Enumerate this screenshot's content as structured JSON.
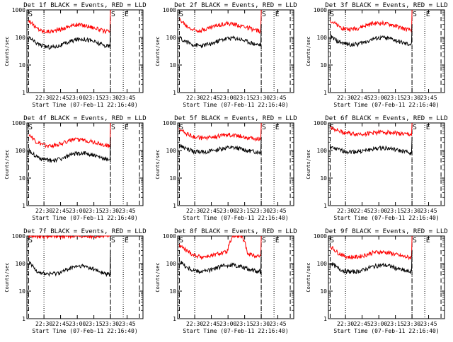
{
  "xaxis_label": "Start Time (07-Feb-11 22:16:40)",
  "yaxis_label": "Counts/sec",
  "chart_data": [
    {
      "type": "line",
      "title": "Det 1f BLACK = Events, RED = LLD",
      "x_tick_labels": [
        "22:30",
        "22:45",
        "23:00",
        "23:15",
        "23:30",
        "23:45"
      ],
      "y_tick_labels": [
        "1",
        "10",
        "100",
        "1000"
      ],
      "ylim": [
        1,
        1000
      ],
      "log_y": true,
      "markers": [
        "S",
        "E"
      ],
      "series": [
        {
          "name": "RED",
          "color": "#ff0000",
          "level": 150,
          "trend": [
            420,
            230,
            170,
            165,
            180,
            210,
            260,
            290,
            280,
            250,
            210,
            170,
            160,
            1000
          ]
        },
        {
          "name": "BLACK",
          "color": "#000000",
          "level": 50,
          "trend": [
            100,
            65,
            50,
            45,
            48,
            55,
            70,
            85,
            90,
            80,
            65,
            52,
            48,
            300
          ]
        }
      ]
    },
    {
      "type": "line",
      "title": "Det 2f BLACK = Events, RED = LLD",
      "x_tick_labels": [
        "22:30",
        "22:45",
        "23:00",
        "23:15",
        "23:30",
        "23:45"
      ],
      "y_tick_labels": [
        "1",
        "10",
        "100",
        "1000"
      ],
      "ylim": [
        1,
        1000
      ],
      "log_y": true,
      "markers": [
        "S",
        "E"
      ],
      "series": [
        {
          "name": "RED",
          "color": "#ff0000",
          "trend": [
            450,
            260,
            190,
            185,
            210,
            250,
            300,
            320,
            300,
            270,
            230,
            185,
            170,
            1000
          ]
        },
        {
          "name": "BLACK",
          "color": "#000000",
          "trend": [
            100,
            70,
            55,
            50,
            55,
            62,
            80,
            92,
            95,
            85,
            70,
            58,
            52,
            300
          ]
        }
      ]
    },
    {
      "type": "line",
      "title": "Det 3f BLACK = Events, RED = LLD",
      "x_tick_labels": [
        "22:30",
        "22:45",
        "23:00",
        "23:15",
        "23:30",
        "23:45"
      ],
      "y_tick_labels": [
        "1",
        "10",
        "100",
        "1000"
      ],
      "ylim": [
        1,
        1000
      ],
      "log_y": true,
      "markers": [
        "S",
        "E"
      ],
      "series": [
        {
          "name": "RED",
          "color": "#ff0000",
          "trend": [
            430,
            270,
            210,
            200,
            215,
            260,
            310,
            330,
            320,
            290,
            240,
            200,
            180,
            1000
          ]
        },
        {
          "name": "BLACK",
          "color": "#000000",
          "trend": [
            110,
            75,
            60,
            56,
            58,
            68,
            85,
            95,
            98,
            88,
            72,
            60,
            55,
            300
          ]
        }
      ]
    },
    {
      "type": "line",
      "title": "Det 4f BLACK = Events, RED = LLD",
      "x_tick_labels": [
        "22:30",
        "22:45",
        "23:00",
        "23:15",
        "23:30",
        "23:45"
      ],
      "y_tick_labels": [
        "1",
        "10",
        "100",
        "1000"
      ],
      "ylim": [
        1,
        1000
      ],
      "log_y": true,
      "markers": [
        "S",
        "E"
      ],
      "series": [
        {
          "name": "RED",
          "color": "#ff0000",
          "trend": [
            380,
            210,
            160,
            150,
            160,
            190,
            230,
            250,
            245,
            220,
            190,
            160,
            150,
            1000
          ]
        },
        {
          "name": "BLACK",
          "color": "#000000",
          "trend": [
            100,
            62,
            48,
            44,
            46,
            52,
            66,
            78,
            82,
            74,
            60,
            50,
            46,
            300
          ]
        }
      ]
    },
    {
      "type": "line",
      "title": "Det 5f BLACK = Events, RED = LLD",
      "x_tick_labels": [
        "22:30",
        "22:45",
        "23:00",
        "23:15",
        "23:30",
        "23:45"
      ],
      "y_tick_labels": [
        "1",
        "10",
        "100",
        "1000"
      ],
      "ylim": [
        1,
        1000
      ],
      "log_y": true,
      "markers": [
        "S",
        "E"
      ],
      "series": [
        {
          "name": "RED",
          "color": "#ff0000",
          "trend": [
            600,
            420,
            320,
            290,
            290,
            310,
            350,
            380,
            370,
            340,
            300,
            270,
            260,
            1000
          ]
        },
        {
          "name": "BLACK",
          "color": "#000000",
          "trend": [
            150,
            115,
            95,
            90,
            92,
            100,
            115,
            125,
            125,
            115,
            100,
            90,
            85,
            300
          ]
        }
      ]
    },
    {
      "type": "line",
      "title": "Det 6f BLACK = Events, RED = LLD",
      "x_tick_labels": [
        "22:30",
        "22:45",
        "23:00",
        "23:15",
        "23:30",
        "23:45"
      ],
      "y_tick_labels": [
        "1",
        "10",
        "100",
        "1000"
      ],
      "ylim": [
        1,
        1000
      ],
      "log_y": true,
      "markers": [
        "S",
        "E"
      ],
      "series": [
        {
          "name": "RED",
          "color": "#ff0000",
          "trend": [
            700,
            560,
            450,
            410,
            400,
            410,
            430,
            460,
            470,
            450,
            420,
            390,
            380,
            1000
          ]
        },
        {
          "name": "BLACK",
          "color": "#000000",
          "trend": [
            130,
            110,
            95,
            90,
            92,
            98,
            110,
            120,
            125,
            115,
            100,
            90,
            80,
            300
          ]
        }
      ]
    },
    {
      "type": "line",
      "title": "Det 7f BLACK = Events, RED = LLD",
      "x_tick_labels": [
        "22:30",
        "22:45",
        "23:00",
        "23:15",
        "23:30",
        "23:45"
      ],
      "y_tick_labels": [
        "1",
        "10",
        "100",
        "1000"
      ],
      "ylim": [
        1,
        1000
      ],
      "log_y": true,
      "markers": [
        "S",
        "E"
      ],
      "series": [
        {
          "name": "RED",
          "color": "#ff0000",
          "trend": [
            1000,
            1000,
            1000,
            1000,
            1000,
            1000,
            1000,
            1000,
            1000,
            1000,
            1000,
            1000,
            1000,
            1000
          ]
        },
        {
          "name": "BLACK",
          "color": "#000000",
          "trend": [
            110,
            60,
            45,
            42,
            45,
            52,
            66,
            78,
            80,
            70,
            55,
            45,
            40,
            300
          ]
        }
      ]
    },
    {
      "type": "line",
      "title": "Det 8f BLACK = Events, RED = LLD",
      "x_tick_labels": [
        "22:30",
        "22:45",
        "23:00",
        "23:15",
        "23:30",
        "23:45"
      ],
      "y_tick_labels": [
        "1",
        "10",
        "100",
        "1000"
      ],
      "ylim": [
        1,
        1000
      ],
      "log_y": true,
      "markers": [
        "S",
        "E"
      ],
      "series": [
        {
          "name": "RED",
          "color": "#ff0000",
          "trend": [
            450,
            300,
            210,
            180,
            180,
            200,
            240,
            260,
            1000,
            1000,
            240,
            190,
            190,
            1000
          ]
        },
        {
          "name": "BLACK",
          "color": "#000000",
          "trend": [
            120,
            75,
            58,
            52,
            55,
            62,
            78,
            88,
            90,
            80,
            65,
            55,
            52,
            300
          ]
        }
      ]
    },
    {
      "type": "line",
      "title": "Det 9f BLACK = Events, RED = LLD",
      "x_tick_labels": [
        "22:30",
        "22:45",
        "23:00",
        "23:15",
        "23:30",
        "23:45"
      ],
      "y_tick_labels": [
        "1",
        "10",
        "100",
        "1000"
      ],
      "ylim": [
        1,
        1000
      ],
      "log_y": true,
      "markers": [
        "S",
        "E"
      ],
      "series": [
        {
          "name": "RED",
          "color": "#ff0000",
          "trend": [
            420,
            260,
            190,
            170,
            175,
            200,
            240,
            265,
            260,
            235,
            200,
            175,
            165,
            1000
          ]
        },
        {
          "name": "BLACK",
          "color": "#000000",
          "trend": [
            110,
            70,
            55,
            50,
            52,
            60,
            75,
            85,
            88,
            78,
            64,
            54,
            50,
            300
          ]
        }
      ]
    }
  ]
}
